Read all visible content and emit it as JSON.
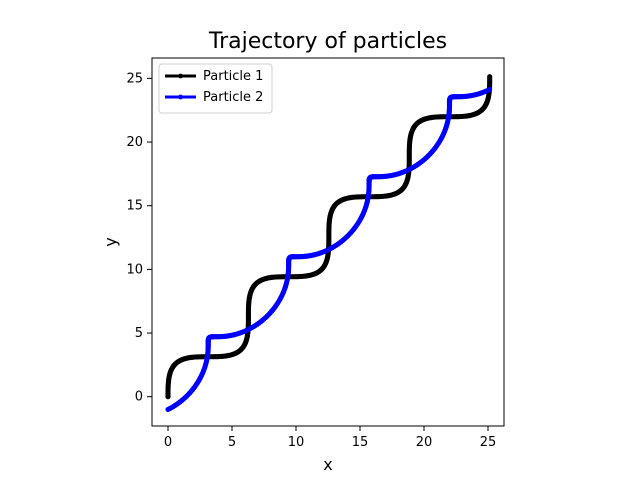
{
  "chart_data": {
    "type": "line",
    "title": "Trajectory of particles",
    "xlabel": "x",
    "ylabel": "y",
    "xlim": [
      -1.25,
      26.25
    ],
    "ylim": [
      -2.3,
      26.6
    ],
    "xticks": [
      0,
      5,
      10,
      15,
      20,
      25
    ],
    "yticks": [
      0,
      5,
      10,
      15,
      20,
      25
    ],
    "grid": false,
    "legend": {
      "placement": "top-left"
    },
    "series": [
      {
        "name": "Particle 1",
        "color": "#000000",
        "marker": "dot",
        "equation": {
          "x": "t - sin(t)",
          "y": "t + sin(t)",
          "t_range": [
            0,
            25.13
          ],
          "samples": 360
        }
      },
      {
        "name": "Particle 2",
        "color": "#0000ff",
        "marker": "dot",
        "equation": {
          "x": "t + sin(t)",
          "y": "t - cos(t)",
          "t_range": [
            0,
            25.13
          ],
          "samples": 360
        }
      }
    ]
  }
}
